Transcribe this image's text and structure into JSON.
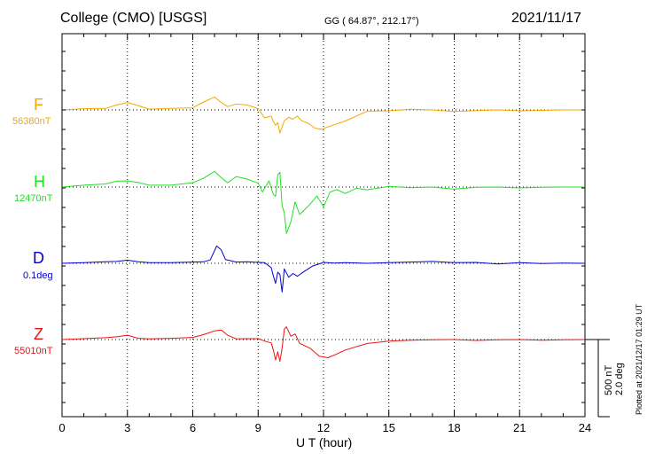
{
  "header": {
    "station": "College (CMO)  [USGS]",
    "coords": "GG ( 64.87°, 212.17°)",
    "date": "2021/11/17"
  },
  "chart_data": {
    "type": "line",
    "xlabel": "U T (hour)",
    "xlim": [
      0,
      24
    ],
    "xticks": [
      0,
      3,
      6,
      9,
      12,
      15,
      18,
      21,
      24
    ],
    "grid": true,
    "scale_bar": {
      "label_nt": "500 nT",
      "label_deg": "2.0 deg"
    },
    "footnote": "Plotted at 2021/12/17 01:29 UT",
    "series": [
      {
        "name": "F",
        "baseline": "56380nT",
        "color": "#f5a800",
        "x": [
          0,
          1,
          2,
          2.5,
          3,
          3.5,
          4,
          5,
          6,
          6.5,
          7,
          7.3,
          7.6,
          8,
          8.5,
          9,
          9.3,
          9.6,
          9.7,
          9.8,
          9.9,
          10,
          10.1,
          10.2,
          10.4,
          10.6,
          10.8,
          11,
          11.3,
          11.6,
          11.9,
          12.2,
          12.5,
          13,
          13.5,
          14,
          15,
          16,
          17,
          18,
          19,
          20,
          21,
          22,
          23,
          24
        ],
        "y": [
          0,
          8,
          10,
          32,
          48,
          28,
          5,
          10,
          14,
          52,
          84,
          48,
          22,
          38,
          32,
          8,
          -52,
          -40,
          -76,
          -100,
          -82,
          -150,
          -110,
          -70,
          -48,
          -60,
          -40,
          -70,
          -86,
          -118,
          -126,
          -110,
          -96,
          -72,
          -40,
          -8,
          -6,
          4,
          0,
          -10,
          -4,
          0,
          -6,
          -3,
          0,
          0
        ]
      },
      {
        "name": "H",
        "baseline": "12470nT",
        "color": "#22e022",
        "x": [
          0,
          1,
          2,
          2.5,
          3,
          3.5,
          4,
          5,
          6,
          6.5,
          7,
          7.3,
          7.6,
          8,
          8.5,
          9,
          9.2,
          9.5,
          9.7,
          9.8,
          9.9,
          10,
          10.1,
          10.2,
          10.3,
          10.5,
          10.7,
          10.9,
          11.1,
          11.4,
          11.7,
          12,
          12.3,
          12.6,
          13,
          13.5,
          14,
          15,
          16,
          17,
          18,
          19,
          20,
          21,
          22,
          23,
          24
        ],
        "y": [
          0,
          12,
          20,
          38,
          40,
          30,
          12,
          12,
          28,
          58,
          102,
          62,
          28,
          68,
          52,
          25,
          -32,
          40,
          -48,
          -60,
          80,
          96,
          -120,
          -168,
          -300,
          -226,
          -96,
          -178,
          -152,
          -108,
          -58,
          -128,
          -32,
          -16,
          -42,
          -8,
          -18,
          4,
          -4,
          0,
          -14,
          -2,
          0,
          -6,
          -2,
          0,
          0
        ]
      },
      {
        "name": "D",
        "baseline": "0.1deg",
        "color": "#0000d0",
        "x": [
          0,
          1,
          2,
          2.5,
          3,
          3.5,
          4,
          5,
          6,
          6.5,
          6.8,
          7.1,
          7.3,
          7.5,
          8,
          8.5,
          9,
          9.3,
          9.6,
          9.7,
          9.8,
          9.9,
          10,
          10.1,
          10.2,
          10.4,
          10.6,
          10.8,
          11,
          11.5,
          12,
          12.5,
          13,
          14,
          15,
          16,
          17,
          18,
          19,
          20,
          21,
          22,
          23,
          24
        ],
        "y": [
          0,
          4,
          10,
          12,
          20,
          10,
          4,
          4,
          8,
          10,
          22,
          112,
          88,
          24,
          8,
          10,
          6,
          4,
          -28,
          -84,
          -130,
          -58,
          -72,
          -186,
          -36,
          -90,
          -66,
          -84,
          -64,
          -18,
          6,
          2,
          4,
          0,
          4,
          8,
          12,
          4,
          6,
          -4,
          4,
          -2,
          2,
          0
        ]
      },
      {
        "name": "Z",
        "baseline": "55010nT",
        "color": "#ee1111",
        "x": [
          0,
          1,
          2,
          2.5,
          3,
          3.5,
          4,
          5,
          6,
          6.5,
          7,
          7.3,
          7.6,
          8,
          8.5,
          9,
          9.3,
          9.6,
          9.7,
          9.8,
          9.9,
          10,
          10.1,
          10.2,
          10.3,
          10.5,
          10.7,
          10.9,
          11.1,
          11.4,
          11.8,
          12.2,
          12.6,
          13,
          14,
          15,
          16,
          17,
          18,
          19,
          20,
          21,
          22,
          23,
          24
        ],
        "y": [
          0,
          6,
          12,
          18,
          28,
          8,
          4,
          8,
          14,
          32,
          56,
          62,
          28,
          4,
          6,
          6,
          -10,
          -22,
          -70,
          -132,
          -80,
          -142,
          -56,
          68,
          82,
          22,
          36,
          -24,
          -38,
          -58,
          -108,
          -118,
          -94,
          -68,
          -26,
          -10,
          -4,
          -2,
          0,
          -6,
          -2,
          0,
          -4,
          -2,
          0
        ]
      }
    ]
  }
}
